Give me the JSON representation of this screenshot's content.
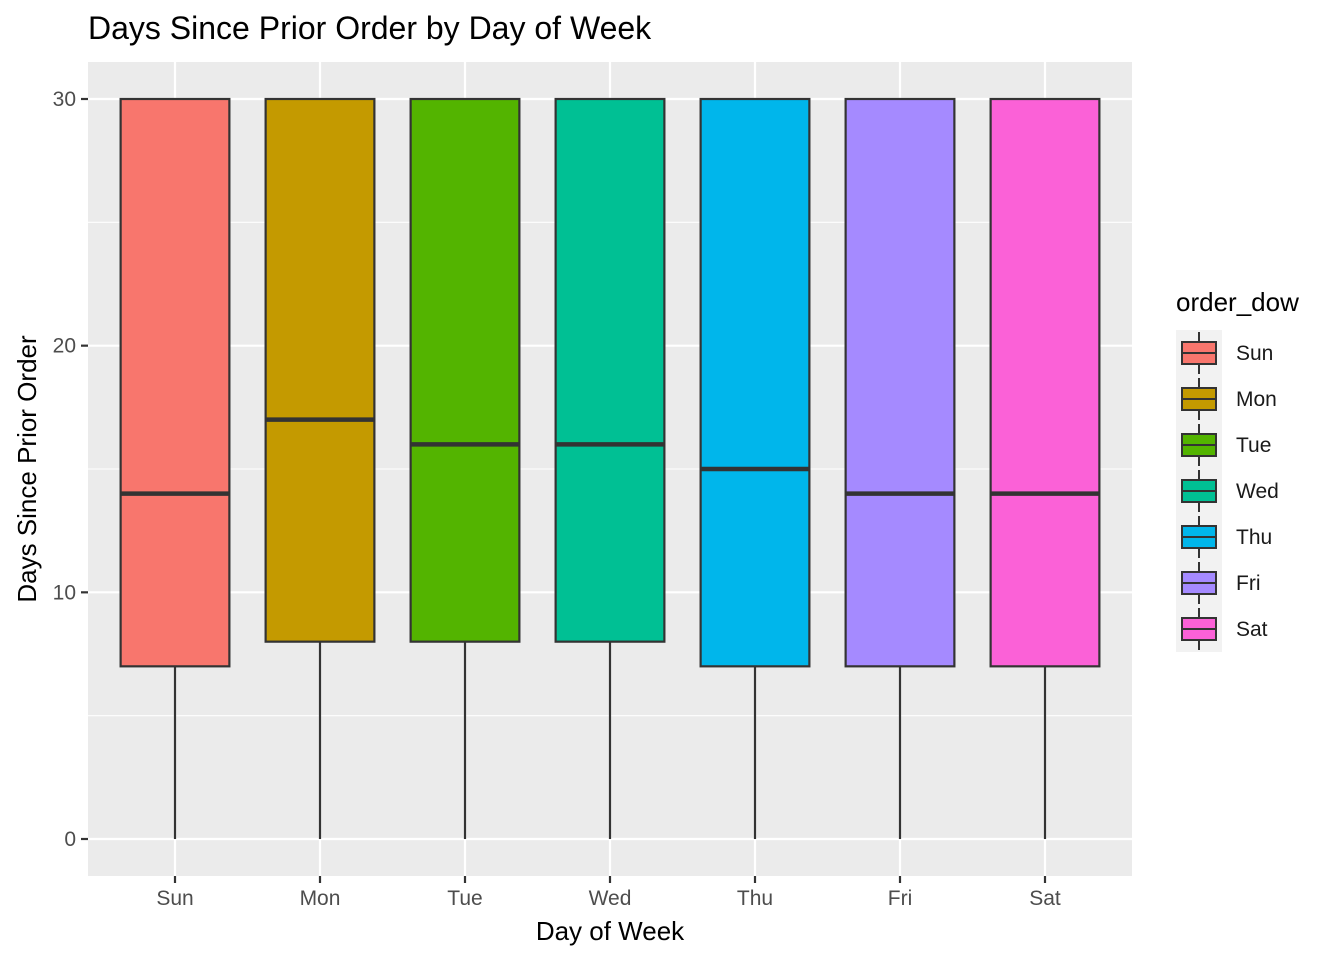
{
  "chart_data": {
    "type": "boxplot",
    "title": "Days Since Prior Order by Day of Week",
    "xlabel": "Day of Week",
    "ylabel": "Days Since Prior Order",
    "categories": [
      "Sun",
      "Mon",
      "Tue",
      "Wed",
      "Thu",
      "Fri",
      "Sat"
    ],
    "ylim": [
      -1.5,
      31.5
    ],
    "yticks": [
      0,
      10,
      20,
      30
    ],
    "boxes": [
      {
        "category": "Sun",
        "min": 0,
        "q1": 7,
        "median": 14,
        "q3": 30,
        "max": 30
      },
      {
        "category": "Mon",
        "min": 0,
        "q1": 8,
        "median": 17,
        "q3": 30,
        "max": 30
      },
      {
        "category": "Tue",
        "min": 0,
        "q1": 8,
        "median": 16,
        "q3": 30,
        "max": 30
      },
      {
        "category": "Wed",
        "min": 0,
        "q1": 8,
        "median": 16,
        "q3": 30,
        "max": 30
      },
      {
        "category": "Thu",
        "min": 0,
        "q1": 7,
        "median": 15,
        "q3": 30,
        "max": 30
      },
      {
        "category": "Fri",
        "min": 0,
        "q1": 7,
        "median": 14,
        "q3": 30,
        "max": 30
      },
      {
        "category": "Sat",
        "min": 0,
        "q1": 7,
        "median": 14,
        "q3": 30,
        "max": 30
      }
    ],
    "colors": {
      "Sun": "#F8766D",
      "Mon": "#C49A00",
      "Tue": "#53B400",
      "Wed": "#00C094",
      "Thu": "#00B6EB",
      "Fri": "#A58AFF",
      "Sat": "#FB61D7"
    },
    "legend": {
      "title": "order_dow",
      "position": "right",
      "entries": [
        "Sun",
        "Mon",
        "Tue",
        "Wed",
        "Thu",
        "Fri",
        "Sat"
      ]
    },
    "grid": true,
    "panel_background": "#EBEBEB",
    "grid_color": "#FFFFFF",
    "outline_color": "#333333"
  }
}
